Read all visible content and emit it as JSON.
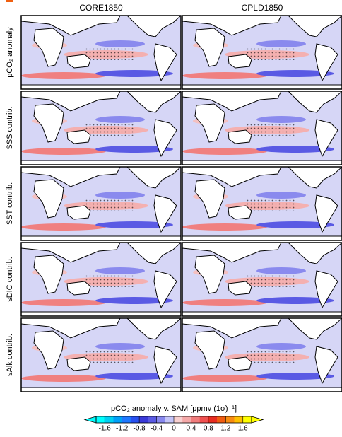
{
  "columns": [
    "CORE1850",
    "CPLD1850"
  ],
  "rows": [
    "pCO₂ anomaly",
    "SSS contrib.",
    "SST contrib.",
    "sDIC contrib.",
    "sAlk contrib."
  ],
  "colorbar": {
    "label": "pCO₂ anomaly v. SAM [ppmv (1σ)⁻¹]",
    "clim": [
      -1.8,
      1.8
    ],
    "ticks": [
      -1.6,
      -1.2,
      -0.8,
      -0.4,
      0,
      0.4,
      0.8,
      1.2,
      1.6
    ],
    "colors": [
      "#00ffff",
      "#00d0f4",
      "#00a0f8",
      "#1e78ff",
      "#2850f0",
      "#3a3ad8",
      "#5a5ae4",
      "#8888ee",
      "#c4c4f8",
      "#f8d0d0",
      "#f4a8a8",
      "#f07c7c",
      "#f05050",
      "#e82c20",
      "#f05c10",
      "#f88c10",
      "#ffc000",
      "#ffff00"
    ]
  }
}
